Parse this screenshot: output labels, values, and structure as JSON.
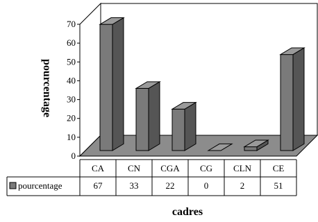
{
  "chart_data": {
    "type": "bar",
    "categories": [
      "CA",
      "CN",
      "CGA",
      "CG",
      "CLN",
      "CE"
    ],
    "series": [
      {
        "name": "pourcentage",
        "values": [
          67,
          33,
          22,
          0,
          2,
          51
        ]
      }
    ],
    "xlabel": "cadres",
    "ylabel": "pourcentage",
    "ylim": [
      0,
      70
    ],
    "yticks": [
      0,
      10,
      20,
      30,
      40,
      50,
      60,
      70
    ],
    "grid": false,
    "legend": "data-table-left",
    "bar_style": "3d",
    "colors": {
      "bar_front": "#7a7a7a",
      "bar_side": "#555555",
      "bar_top": "#9a9a9a",
      "floor": "#8c8c8c",
      "outline": "#000000"
    },
    "data_table": {
      "row_label": "pourcentage",
      "values": [
        "67",
        "33",
        "22",
        "0",
        "2",
        "51"
      ]
    }
  }
}
